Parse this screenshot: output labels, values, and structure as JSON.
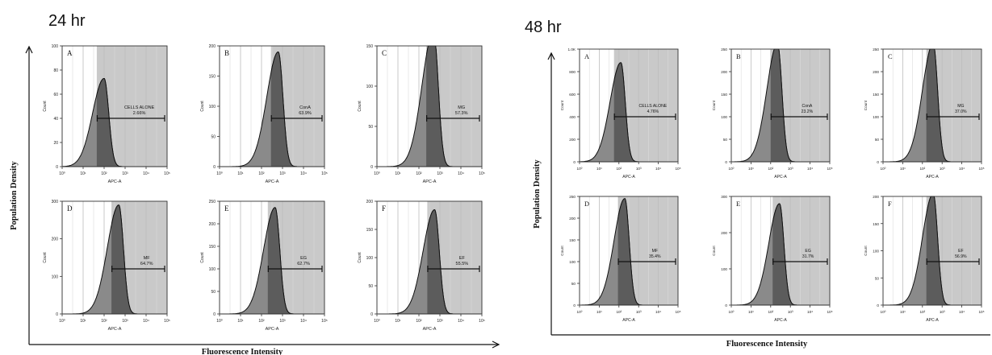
{
  "chart_data": [
    {
      "type": "area",
      "title": "24 hr",
      "ylabel": "Population Density",
      "xlabel": "Fluorescence Intensity",
      "x_scale": "log",
      "x_ticks": [
        "10⁰",
        "10¹",
        "10²",
        "10³",
        "10⁴",
        "10⁵"
      ],
      "panels": [
        {
          "letter": "A",
          "xlabel": "APC-A",
          "ylabel": "Count",
          "ylim": [
            0,
            100
          ],
          "yticks": [
            0,
            20,
            40,
            60,
            80,
            100
          ],
          "peak_x_log": 2.0,
          "peak_y": 73,
          "gate_label": "CELLS ALONE",
          "gate_value": "2.66%"
        },
        {
          "letter": "B",
          "xlabel": "APC-A",
          "ylabel": "Count",
          "ylim": [
            0,
            200
          ],
          "yticks": [
            0,
            50,
            100,
            150,
            200
          ],
          "peak_x_log": 2.8,
          "peak_y": 190,
          "gate_label": "ConA",
          "gate_value": "63.9%"
        },
        {
          "letter": "C",
          "xlabel": "APC-A",
          "ylabel": "Count",
          "ylim": [
            0,
            150
          ],
          "yticks": [
            0,
            50,
            100,
            150
          ],
          "peak_x_log": 2.7,
          "peak_y": 168,
          "gate_label": "MG",
          "gate_value": "57.3%"
        },
        {
          "letter": "D",
          "xlabel": "APC-A",
          "ylabel": "Count",
          "ylim": [
            0,
            300
          ],
          "yticks": [
            0,
            100,
            200,
            300
          ],
          "peak_x_log": 2.7,
          "peak_y": 290,
          "gate_label": "MF",
          "gate_value": "64.7%"
        },
        {
          "letter": "E",
          "xlabel": "APC-A",
          "ylabel": "Count",
          "ylim": [
            0,
            250
          ],
          "yticks": [
            0,
            50,
            100,
            150,
            200,
            250
          ],
          "peak_x_log": 2.65,
          "peak_y": 236,
          "gate_label": "EG",
          "gate_value": "62.7%"
        },
        {
          "letter": "F",
          "xlabel": "APC-A",
          "ylabel": "Count",
          "ylim": [
            0,
            200
          ],
          "yticks": [
            0,
            50,
            100,
            150,
            200
          ],
          "peak_x_log": 2.75,
          "peak_y": 185,
          "gate_label": "EF",
          "gate_value": "55.5%"
        }
      ]
    },
    {
      "type": "area",
      "title": "48 hr",
      "ylabel": "Population Density",
      "xlabel": "Fluorescence Intensity",
      "x_scale": "log",
      "x_ticks": [
        "10⁰",
        "10¹",
        "10²",
        "10³",
        "10⁴",
        "10⁵"
      ],
      "panels": [
        {
          "letter": "A",
          "xlabel": "APC-A",
          "ylabel": "Count",
          "ylim": [
            0,
            1000
          ],
          "yticks": [
            0,
            200,
            400,
            600,
            800,
            "1.0K"
          ],
          "peak_x_log": 2.1,
          "peak_y": 880,
          "gate_label": "CELLS ALONE",
          "gate_value": "4.76%"
        },
        {
          "letter": "B",
          "xlabel": "APC-A",
          "ylabel": "Count",
          "ylim": [
            0,
            250
          ],
          "yticks": [
            0,
            50,
            100,
            150,
            200,
            250
          ],
          "peak_x_log": 2.35,
          "peak_y": 262,
          "gate_label": "ConA",
          "gate_value": "23.2%"
        },
        {
          "letter": "C",
          "xlabel": "APC-A",
          "ylabel": "Count",
          "ylim": [
            0,
            250
          ],
          "yticks": [
            0,
            50,
            100,
            150,
            200,
            250
          ],
          "peak_x_log": 2.55,
          "peak_y": 262,
          "gate_label": "MG",
          "gate_value": "37.0%"
        },
        {
          "letter": "D",
          "xlabel": "APC-A",
          "ylabel": "Count",
          "ylim": [
            0,
            250
          ],
          "yticks": [
            0,
            50,
            100,
            150,
            200,
            250
          ],
          "peak_x_log": 2.3,
          "peak_y": 245,
          "gate_label": "MF",
          "gate_value": "35.4%"
        },
        {
          "letter": "E",
          "xlabel": "APC-A",
          "ylabel": "Count",
          "ylim": [
            0,
            300
          ],
          "yticks": [
            0,
            100,
            200,
            300
          ],
          "peak_x_log": 2.45,
          "peak_y": 280,
          "gate_label": "EG",
          "gate_value": "31.7%"
        },
        {
          "letter": "F",
          "xlabel": "APC-A",
          "ylabel": "Count",
          "ylim": [
            0,
            200
          ],
          "yticks": [
            0,
            50,
            100,
            150,
            200
          ],
          "peak_x_log": 2.55,
          "peak_y": 205,
          "gate_label": "EF",
          "gate_value": "56.9%"
        }
      ]
    }
  ]
}
